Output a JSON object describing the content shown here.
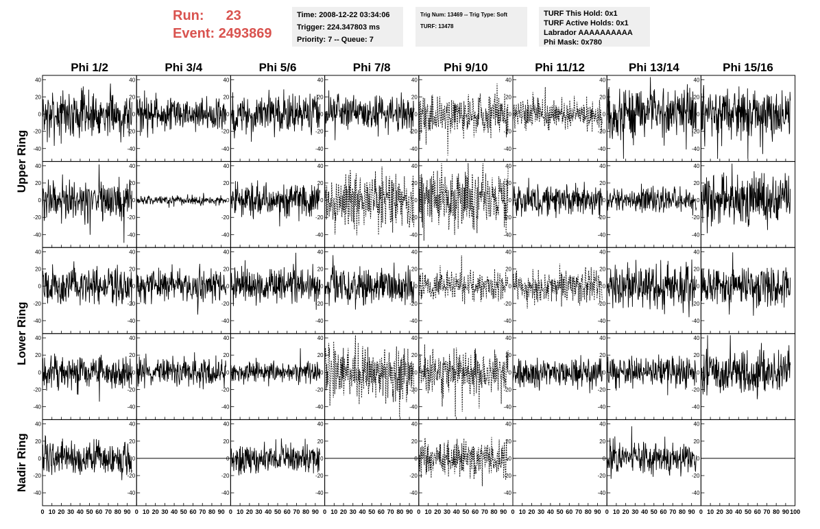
{
  "header": {
    "run_label": "Run:",
    "run_value": "23",
    "event_label": "Event:",
    "event_value": "2493869"
  },
  "time_box": {
    "time": "Time: 2008-12-22 03:34:06",
    "trigger": "Trigger: 224.347803 ms",
    "priority": "Priority: 7 -- Queue: 7"
  },
  "trig_box": {
    "trig": "Trig Num: 13469 -- Trig Type: Soft",
    "turf": "TURF: 13478"
  },
  "turf_box": {
    "this_hold": "TURF This Hold: 0x1",
    "active_holds": "TURF Active Holds: 0x1",
    "labrador": "Labrador AAAAAAAAAA",
    "phi_mask": "Phi Mask: 0x780"
  },
  "chart_data": {
    "type": "line",
    "columns": [
      "Phi 1/2",
      "Phi 3/4",
      "Phi 5/6",
      "Phi 7/8",
      "Phi 9/10",
      "Phi 11/12",
      "Phi 13/14",
      "Phi 15/16"
    ],
    "rows": [
      "Upper Ring",
      "Upper Ring",
      "Lower Ring",
      "Lower Ring",
      "Nadir Ring"
    ],
    "row_labels": [
      {
        "label": "Upper Ring",
        "rows": [
          0,
          1
        ]
      },
      {
        "label": "Lower Ring",
        "rows": [
          2,
          3
        ]
      },
      {
        "label": "Nadir Ring",
        "rows": [
          4
        ]
      }
    ],
    "xlim": [
      0,
      100
    ],
    "ylim": [
      -55,
      45
    ],
    "x_ticks": [
      0,
      10,
      20,
      30,
      40,
      50,
      60,
      70,
      80,
      90
    ],
    "x_tick_labels_last_panel": [
      0,
      10,
      20,
      30,
      40,
      50,
      60,
      70,
      80,
      90,
      100
    ],
    "y_ticks": [
      40,
      20,
      0,
      -20,
      -40
    ],
    "line_color": "#000000",
    "waveform_samples": 260,
    "waveform_x_range": [
      0,
      95
    ],
    "panels": [
      [
        {
          "amp": 16,
          "style": "solid"
        },
        {
          "amp": 12,
          "style": "solid"
        },
        {
          "amp": 14,
          "style": "solid"
        },
        {
          "amp": 12,
          "style": "solid"
        },
        {
          "amp": 16,
          "style": "dashed"
        },
        {
          "amp": 11,
          "style": "dashed"
        },
        {
          "amp": 18,
          "style": "solid"
        },
        {
          "amp": 18,
          "style": "solid"
        }
      ],
      [
        {
          "amp": 14,
          "style": "solid"
        },
        {
          "amp": 3,
          "style": "solid"
        },
        {
          "amp": 12,
          "style": "solid"
        },
        {
          "amp": 19,
          "style": "dashed"
        },
        {
          "amp": 20,
          "style": "dashed"
        },
        {
          "amp": 11,
          "style": "solid"
        },
        {
          "amp": 9,
          "style": "solid"
        },
        {
          "amp": 17,
          "style": "solid"
        }
      ],
      [
        {
          "amp": 13,
          "style": "solid"
        },
        {
          "amp": 12,
          "style": "solid"
        },
        {
          "amp": 12,
          "style": "solid"
        },
        {
          "amp": 14,
          "style": "solid"
        },
        {
          "amp": 10,
          "style": "dashed"
        },
        {
          "amp": 12,
          "style": "dashed"
        },
        {
          "amp": 15,
          "style": "solid"
        },
        {
          "amp": 15,
          "style": "solid"
        }
      ],
      [
        {
          "amp": 12,
          "style": "solid"
        },
        {
          "amp": 10,
          "style": "solid"
        },
        {
          "amp": 7,
          "style": "solid"
        },
        {
          "amp": 19,
          "style": "dashed"
        },
        {
          "amp": 15,
          "style": "dashed"
        },
        {
          "amp": 10,
          "style": "solid"
        },
        {
          "amp": 10,
          "style": "solid"
        },
        {
          "amp": 15,
          "style": "solid"
        }
      ],
      [
        {
          "amp": 12,
          "style": "solid"
        },
        {
          "amp": 0,
          "style": "flat"
        },
        {
          "amp": 10,
          "style": "solid"
        },
        {
          "amp": 0,
          "style": "flat"
        },
        {
          "amp": 13,
          "style": "dashed"
        },
        {
          "amp": 0,
          "style": "flat"
        },
        {
          "amp": 11,
          "style": "solid"
        },
        {
          "amp": 0,
          "style": "flat"
        }
      ]
    ]
  }
}
